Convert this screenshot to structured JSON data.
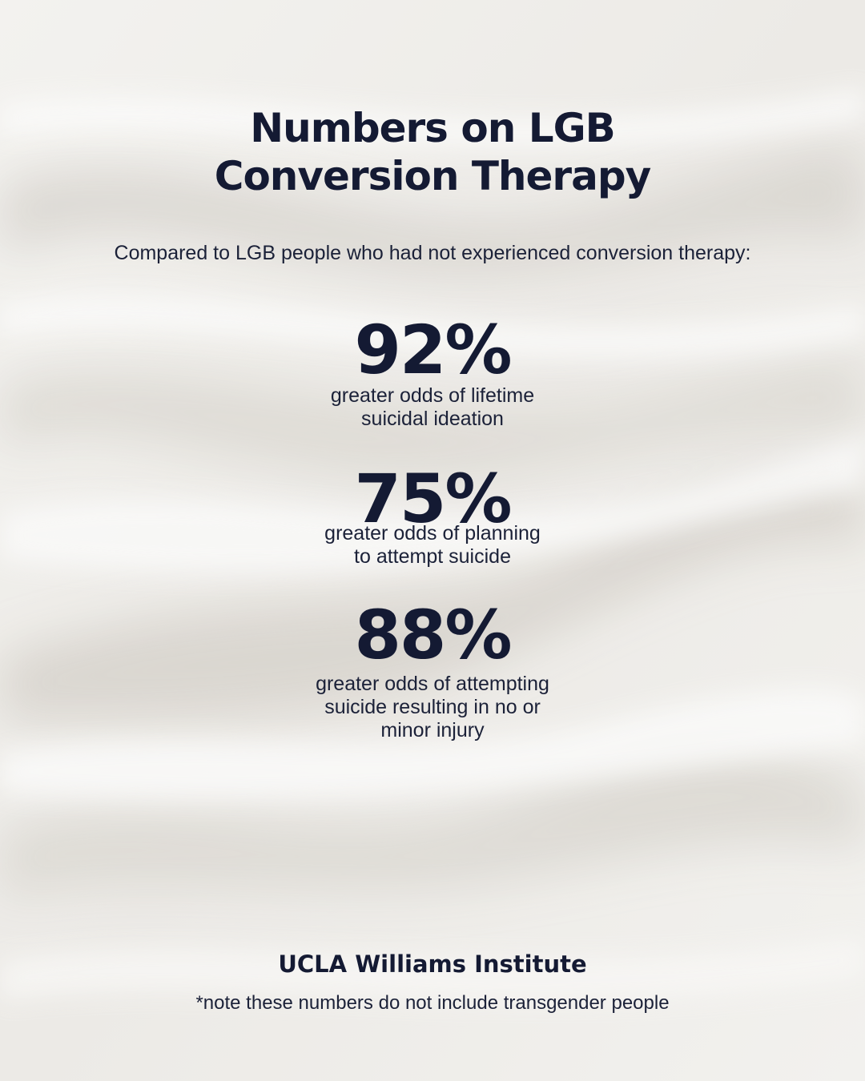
{
  "title": {
    "line1": "Numbers on LGB",
    "line2": "Conversion Therapy"
  },
  "subtitle": "Compared to LGB people who had not experienced conversion therapy:",
  "stats": [
    {
      "value": "92%",
      "description": [
        "greater odds of lifetime",
        "suicidal ideation"
      ]
    },
    {
      "value": "75%",
      "description": [
        "greater odds of planning",
        "to attempt suicide"
      ]
    },
    {
      "value": "88%",
      "description": [
        "greater odds of attempting",
        "suicide resulting in no or",
        "minor injury"
      ]
    }
  ],
  "source": "UCLA Williams Institute",
  "note": "*note these numbers do not include transgender people",
  "colors": {
    "text": "#141a33",
    "background": "#efeeeb"
  }
}
